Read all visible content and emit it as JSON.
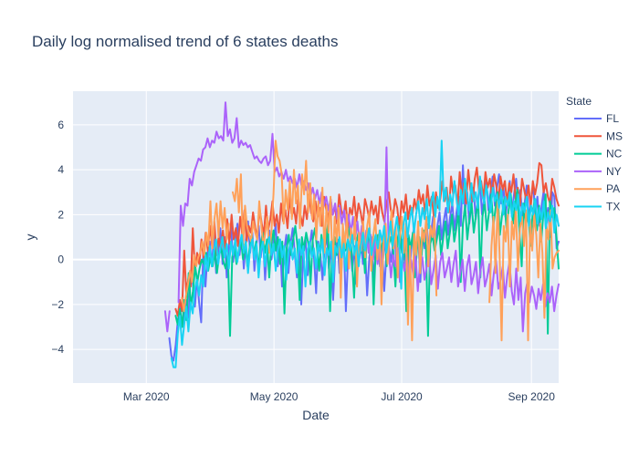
{
  "chart_data": {
    "type": "line",
    "title": "Daily log normalised trend of 6 states deaths",
    "xlabel": "Date",
    "ylabel": "y",
    "x_ticks": [
      "Mar 2020",
      "May 2020",
      "Jul 2020",
      "Sep 2020"
    ],
    "x_tick_dates": [
      "2020-03-01",
      "2020-05-01",
      "2020-07-01",
      "2020-09-01"
    ],
    "x_range": [
      "2020-01-26",
      "2020-09-14"
    ],
    "y_ticks": [
      -4,
      -2,
      0,
      2,
      4,
      6
    ],
    "ylim": [
      -5.5,
      7.5
    ],
    "grid": true,
    "legend_title": "State",
    "legend_position": "top-right",
    "series": [
      {
        "name": "FL",
        "color": "#636efa",
        "start": "2020-03-12",
        "end": "2020-09-14",
        "values": [
          -3.5,
          -4.3,
          -4.5,
          -3.8,
          -2.7,
          -2.1,
          -3.0,
          -2.5,
          -1.8,
          -2.6,
          -0.5,
          -1.0,
          -2.1,
          -0.8,
          -1.9,
          -2.8,
          0.5,
          -1.2,
          0.3,
          0.8,
          -0.3,
          1.1,
          -0.6,
          0.4,
          1.4,
          -0.2,
          1.0,
          -0.8,
          0.6,
          1.5,
          -0.1,
          0.8,
          1.6,
          0.2,
          1.1,
          -0.4,
          0.9,
          1.7,
          0.3,
          1.2,
          -0.5,
          0.7,
          1.5,
          0.1,
          1.0,
          -0.9,
          0.5,
          1.3,
          0.0,
          0.8,
          1.6,
          -0.3,
          0.9,
          -1.2,
          0.4,
          1.1,
          -0.6,
          0.7,
          1.4,
          0.2,
          -0.8,
          0.9,
          -2.0,
          0.3,
          1.0,
          -0.7,
          0.6,
          1.3,
          0.1,
          -1.5,
          0.8,
          0.2,
          -0.9,
          0.5,
          1.1,
          -0.4,
          0.7,
          -1.8,
          0.3,
          0.9,
          -0.6,
          0.4,
          1.0,
          -2.3,
          0.2,
          0.8,
          -0.5,
          0.6,
          -1.1,
          0.3,
          0.9,
          -0.2,
          0.5,
          -1.6,
          0.1,
          0.7,
          -0.8,
          0.4,
          1.0,
          -0.3,
          0.6,
          -1.4,
          0.2,
          0.8,
          -0.1,
          0.5,
          1.1,
          -0.7,
          0.3,
          0.9,
          0.0,
          0.6,
          1.2,
          -0.4,
          0.8,
          1.4,
          0.2,
          1.0,
          -1.0,
          1.3,
          0.5,
          1.6,
          0.3,
          1.2,
          1.9,
          0.7,
          1.5,
          2.1,
          0.9,
          1.7,
          2.3,
          1.1,
          1.9,
          2.5,
          1.3,
          2.1,
          2.8,
          1.5,
          4.2,
          2.2,
          3.0,
          1.6,
          2.4,
          3.2,
          1.8,
          2.6,
          3.4,
          2.0,
          2.8,
          3.5,
          2.2,
          3.0,
          3.7,
          2.4,
          3.2,
          3.8,
          2.5,
          3.3,
          1.9,
          2.7,
          3.5,
          2.1,
          2.9,
          3.6,
          2.3,
          3.1,
          1.7,
          2.5,
          3.3,
          1.8,
          2.6,
          3.4,
          2.0,
          2.8,
          1.5,
          2.4,
          3.1,
          1.4,
          2.3,
          1.0,
          3.0,
          2.8,
          0.5,
          0.8
        ]
      },
      {
        "name": "MS",
        "color": "#EF553B",
        "start": "2020-03-15",
        "end": "2020-09-14",
        "values": [
          -2.2,
          -2.5,
          -1.8,
          -2.3,
          0.4,
          -1.5,
          -0.8,
          -1.2,
          1.4,
          -0.5,
          0.3,
          -0.2,
          0.9,
          0.1,
          1.2,
          0.4,
          1.5,
          0.6,
          1.7,
          0.2,
          1.0,
          0.5,
          1.3,
          0.3,
          1.8,
          0.7,
          2.0,
          0.9,
          1.4,
          0.6,
          1.9,
          1.1,
          2.2,
          0.8,
          1.5,
          1.2,
          2.1,
          1.4,
          1.0,
          2.3,
          1.6,
          1.1,
          2.4,
          1.3,
          1.8,
          2.6,
          1.5,
          2.0,
          1.2,
          2.5,
          1.7,
          2.2,
          1.4,
          2.8,
          1.9,
          2.3,
          1.6,
          2.7,
          2.0,
          1.5,
          2.4,
          1.8,
          2.9,
          2.1,
          1.7,
          2.6,
          1.9,
          2.3,
          1.5,
          2.8,
          2.2,
          1.8,
          2.7,
          2.0,
          2.4,
          1.6,
          2.9,
          2.2,
          1.9,
          2.6,
          1.4,
          2.3,
          2.0,
          2.8,
          1.7,
          2.5,
          2.1,
          1.5,
          2.7,
          2.3,
          1.8,
          2.6,
          2.0,
          2.4,
          1.6,
          2.8,
          2.1,
          1.7,
          2.5,
          3.0,
          2.2,
          1.9,
          2.7,
          2.3,
          1.4,
          2.6,
          2.1,
          2.9,
          1.8,
          2.4,
          2.0,
          2.7,
          2.2,
          3.1,
          2.5,
          2.9,
          2.0,
          3.3,
          2.4,
          2.8,
          1.9,
          3.0,
          2.3,
          2.7,
          3.5,
          2.6,
          3.2,
          2.1,
          3.7,
          2.9,
          3.3,
          2.4,
          3.9,
          2.8,
          3.4,
          2.5,
          4.0,
          3.1,
          2.6,
          3.6,
          4.1,
          3.0,
          3.5,
          2.7,
          3.9,
          3.2,
          3.6,
          2.8,
          3.8,
          3.3,
          2.6,
          3.7,
          3.1,
          3.5,
          2.5,
          3.4,
          3.0,
          3.8,
          2.7,
          3.2,
          2.4,
          3.6,
          3.1,
          2.6,
          3.3,
          2.3,
          3.5,
          2.9,
          3.4,
          4.3,
          4.2,
          3.0,
          3.4,
          2.8,
          2.5,
          3.6,
          3.2,
          2.7,
          2.4
        ]
      },
      {
        "name": "NC",
        "color": "#00cc96",
        "start": "2020-03-15",
        "end": "2020-09-14",
        "values": [
          -2.5,
          -2.9,
          -2.2,
          -3.0,
          -1.8,
          -2.7,
          -0.6,
          -2.1,
          -1.4,
          -0.3,
          -1.0,
          -0.4,
          0.0,
          -0.2,
          0.3,
          -0.5,
          0.1,
          -0.3,
          0.4,
          -0.6,
          0.2,
          0.5,
          -0.1,
          -0.4,
          0.3,
          -3.4,
          0.1,
          0.6,
          -0.2,
          0.4,
          0.9,
          0.0,
          0.7,
          -0.3,
          0.5,
          1.1,
          0.2,
          0.8,
          -0.4,
          0.6,
          1.2,
          0.3,
          0.9,
          -0.8,
          0.7,
          1.3,
          0.4,
          1.0,
          -0.2,
          0.8,
          -2.4,
          0.5,
          1.1,
          0.2,
          0.9,
          1.5,
          0.6,
          -1.8,
          1.0,
          0.4,
          1.2,
          0.7,
          -1.1,
          0.9,
          1.4,
          0.5,
          -0.5,
          1.1,
          0.3,
          0.8,
          1.6,
          -2.3,
          0.6,
          1.0,
          0.2,
          0.9,
          -0.9,
          1.3,
          0.4,
          0.8,
          1.5,
          0.1,
          -1.7,
          0.7,
          1.2,
          0.3,
          0.9,
          -0.6,
          1.4,
          0.5,
          1.0,
          -2.0,
          0.6,
          1.1,
          0.2,
          0.8,
          1.3,
          -0.3,
          0.7,
          1.0,
          0.4,
          -1.2,
          0.9,
          1.5,
          0.3,
          0.8,
          -2.3,
          1.1,
          0.5,
          1.2,
          -0.8,
          0.6,
          1.0,
          0.2,
          1.3,
          0.6,
          -3.4,
          0.7,
          1.1,
          0.4,
          0.9,
          1.5,
          0.2,
          1.0,
          1.7,
          0.5,
          1.2,
          2.0,
          0.8,
          1.4,
          2.2,
          -1.0,
          1.6,
          2.4,
          0.9,
          1.8,
          2.5,
          1.2,
          2.0,
          2.7,
          -0.8,
          1.9,
          2.6,
          1.3,
          2.1,
          2.9,
          1.5,
          2.3,
          3.0,
          1.1,
          2.0,
          2.7,
          1.4,
          2.2,
          2.9,
          1.6,
          2.4,
          3.1,
          1.2,
          -0.3,
          2.5,
          1.5,
          2.2,
          0.6,
          2.0,
          2.7,
          1.3,
          2.4,
          0.8,
          2.1,
          2.9,
          -3.3,
          2.6,
          1.9,
          2.3,
          1.0,
          -0.4
        ]
      },
      {
        "name": "NY",
        "color": "#ab63fa",
        "start": "2020-03-10",
        "end": "2020-09-14",
        "values": [
          -2.3,
          -3.2,
          -2.3,
          null,
          null,
          null,
          -1.9,
          2.4,
          1.5,
          2.5,
          2.4,
          3.6,
          3.3,
          3.9,
          4.2,
          4.5,
          4.4,
          4.9,
          5.0,
          5.4,
          5.0,
          5.3,
          5.2,
          5.7,
          5.4,
          5.5,
          5.3,
          7.0,
          5.5,
          5.8,
          5.2,
          5.4,
          6.3,
          5.0,
          5.3,
          5.1,
          5.2,
          5.0,
          5.1,
          4.8,
          4.5,
          4.6,
          4.4,
          4.3,
          4.5,
          4.6,
          4.2,
          4.4,
          5.6,
          3.9,
          4.1,
          3.7,
          3.9,
          3.6,
          4.0,
          3.5,
          3.7,
          3.4,
          3.6,
          3.2,
          3.8,
          3.3,
          3.5,
          3.1,
          3.4,
          2.8,
          3.2,
          2.7,
          3.1,
          2.5,
          3.0,
          2.4,
          2.8,
          2.2,
          2.7,
          2.0,
          2.5,
          1.8,
          2.4,
          1.6,
          2.2,
          1.4,
          2.0,
          1.2,
          1.9,
          0.9,
          1.7,
          0.7,
          1.5,
          0.5,
          1.3,
          0.3,
          1.1,
          0.0,
          0.9,
          -0.2,
          0.7,
          -0.5,
          0.6,
          5.0,
          0.4,
          -0.8,
          0.2,
          -0.3,
          0.5,
          -1.0,
          0.1,
          -0.5,
          0.3,
          -1.2,
          0.0,
          -0.7,
          0.2,
          -1.4,
          -0.2,
          0.1,
          -0.9,
          -0.3,
          0.4,
          -1.1,
          -0.5,
          0.2,
          -1.3,
          -0.1,
          0.3,
          -0.8,
          -0.4,
          0.1,
          -1.0,
          -0.2,
          0.4,
          -1.2,
          -0.6,
          0.0,
          -1.4,
          -0.3,
          0.2,
          -1.1,
          -0.7,
          -0.1,
          -1.5,
          -0.5,
          0.1,
          -1.2,
          -0.8,
          -0.2,
          -1.6,
          -0.6,
          0.0,
          -1.3,
          -0.9,
          -0.3,
          -1.7,
          -0.7,
          -0.1,
          -1.4,
          -2.0,
          -0.4,
          -1.8,
          -0.8,
          -3.2,
          -1.5,
          -1.0,
          -1.9,
          -1.2,
          -1.6,
          -2.2,
          -1.3,
          -1.8,
          -1.1,
          -2.1,
          -1.5,
          -1.9,
          -1.2,
          -2.3,
          -1.6,
          -1.1
        ]
      },
      {
        "name": "PA",
        "color": "#FFA15A",
        "start": "2020-03-18",
        "end": "2020-09-14",
        "values": [
          -1.7,
          -2.3,
          -1.6,
          -1.1,
          -0.5,
          -1.0,
          0.2,
          -0.3,
          0.1,
          0.3,
          0.8,
          0.2,
          1.2,
          0.6,
          2.6,
          0.5,
          1.8,
          2.5,
          1.0,
          2.6,
          1.4,
          2.3,
          0.9,
          1.6,
          null,
          3.0,
          2.6,
          3.6,
          2.1,
          3.8,
          0.5,
          2.4,
          1.5,
          1.1,
          0.8,
          1.7,
          1.2,
          0.9,
          2.6,
          1.5,
          0.6,
          1.2,
          1.9,
          0.3,
          1.3,
          2.9,
          5.3,
          4.6,
          4.4,
          3.8,
          1.6,
          3.1,
          2.2,
          3.5,
          1.8,
          4.0,
          2.5,
          3.3,
          1.4,
          3.8,
          2.9,
          4.4,
          2.1,
          3.4,
          1.8,
          2.9,
          0.9,
          2.6,
          1.5,
          3.2,
          0.3,
          2.4,
          1.2,
          2.8,
          -0.6,
          1.9,
          0.8,
          2.3,
          -1.7,
          1.6,
          0.5,
          2.0,
          -0.4,
          1.4,
          0.7,
          1.9,
          -1.2,
          1.2,
          0.4,
          1.7,
          0.1,
          1.5,
          2.1,
          -0.5,
          1.1,
          1.8,
          0.0,
          1.3,
          -2.0,
          0.9,
          1.6,
          -0.2,
          1.2,
          2.2,
          0.5,
          1.5,
          -0.8,
          1.0,
          1.9,
          0.3,
          1.6,
          -2.9,
          0.6,
          -3.6,
          1.3,
          0.2,
          1.7,
          -0.6,
          1.4,
          0.8,
          1.9,
          -0.3,
          1.5,
          1.0,
          1.9,
          -1.6,
          null,
          null,
          null,
          null,
          null,
          null,
          null,
          null,
          null,
          null,
          null,
          null,
          null,
          null,
          null,
          null,
          null,
          null,
          null,
          null,
          null,
          null,
          null,
          null,
          null,
          -1.9,
          0.6,
          1.9,
          -0.6,
          2.6,
          0.2,
          -3.6,
          1.5,
          0.8,
          2.0,
          -1.2,
          1.7,
          0.9,
          2.3,
          -0.5,
          1.4,
          1.9,
          0.6,
          2.2,
          -3.6,
          1.8,
          0.4,
          2.0,
          1.1,
          -0.8,
          1.6,
          0.3,
          -2.6,
          1.5,
          0.9,
          2.2,
          -0.4,
          0.1,
          0.3,
          0.4
        ]
      },
      {
        "name": "TX",
        "color": "#19d3f3",
        "start": "2020-03-13",
        "end": "2020-09-14",
        "values": [
          -4.4,
          -4.8,
          -4.8,
          -3.3,
          -2.5,
          -3.8,
          -2.9,
          -2.1,
          -3.2,
          -1.9,
          -2.4,
          -1.3,
          -0.9,
          -1.6,
          -0.7,
          -1.2,
          0.2,
          -0.5,
          0.6,
          -0.3,
          0.4,
          0.9,
          -0.2,
          0.5,
          1.0,
          0.1,
          0.7,
          -0.4,
          0.8,
          0.2,
          0.9,
          -0.1,
          0.6,
          1.1,
          0.3,
          0.8,
          -0.6,
          0.5,
          0.9,
          0.0,
          0.7,
          -0.8,
          0.4,
          0.8,
          -0.3,
          0.6,
          1.0,
          0.2,
          0.7,
          -0.5,
          0.4,
          0.9,
          0.1,
          0.6,
          -0.9,
          0.3,
          0.8,
          0.0,
          0.5,
          -0.6,
          0.9,
          0.2,
          0.6,
          -1.2,
          0.4,
          0.8,
          0.1,
          0.5,
          -0.4,
          0.7,
          0.3,
          0.9,
          -0.7,
          0.5,
          0.2,
          0.8,
          -1.0,
          0.6,
          0.3,
          1.0,
          0.1,
          0.7,
          -0.5,
          0.9,
          0.4,
          1.1,
          0.2,
          0.8,
          -0.3,
          0.6,
          1.2,
          0.4,
          0.9,
          1.4,
          0.2,
          0.7,
          1.1,
          0.5,
          1.3,
          0.8,
          1.5,
          0.3,
          1.0,
          1.7,
          0.6,
          1.3,
          1.9,
          0.9,
          -1.3,
          1.5,
          2.1,
          1.0,
          1.8,
          2.3,
          1.2,
          2.0,
          2.6,
          1.5,
          2.3,
          1.8,
          2.7,
          1.4,
          2.5,
          3.0,
          1.9,
          2.8,
          2.2,
          5.3,
          2.6,
          3.2,
          2.1,
          2.9,
          2.4,
          3.5,
          2.7,
          2.0,
          3.1,
          2.5,
          3.6,
          2.8,
          2.2,
          3.4,
          2.6,
          3.0,
          2.3,
          3.7,
          2.9,
          2.5,
          3.3,
          2.7,
          2.1,
          3.2,
          2.6,
          2.9,
          2.3,
          3.1,
          2.0,
          2.8,
          2.4,
          3.0,
          1.9,
          2.6,
          2.2,
          2.9,
          1.7,
          2.5,
          2.1,
          2.8,
          1.5,
          2.4,
          2.0,
          2.7,
          1.6,
          2.3,
          1.8,
          2.6,
          1.4,
          2.1,
          1.7,
          2.4,
          1.2,
          2.0,
          1.5
        ]
      }
    ]
  }
}
